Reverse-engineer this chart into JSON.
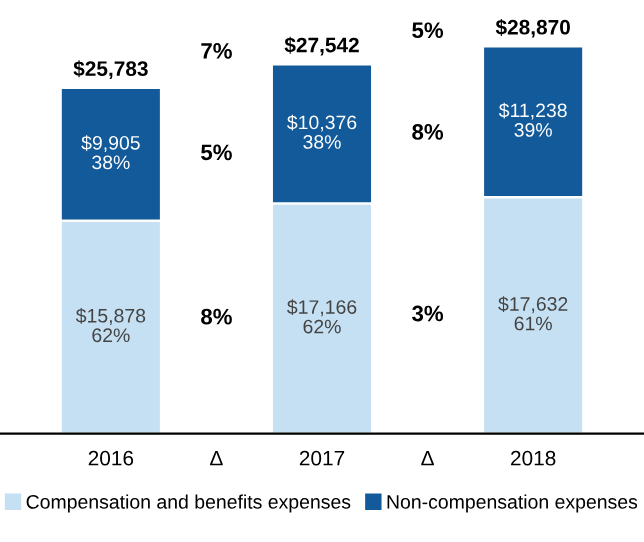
{
  "chart_data": {
    "type": "bar",
    "stacked": true,
    "categories": [
      "2016",
      "Δ",
      "2017",
      "Δ",
      "2018"
    ],
    "series": [
      {
        "name": "Compensation and benefits expenses",
        "color": "#c6e0f3",
        "values": [
          15878,
          null,
          17166,
          null,
          17632
        ],
        "value_labels": [
          "$15,878\n62%",
          null,
          "$17,166\n62%",
          null,
          "$17,632\n61%"
        ]
      },
      {
        "name": "Non-compensation expenses",
        "color": "#135a9a",
        "values": [
          9905,
          null,
          10376,
          null,
          11238
        ],
        "value_labels": [
          "$9,905\n38%",
          null,
          "$10,376\n38%",
          null,
          "$11,238\n39%"
        ]
      }
    ],
    "totals": [
      "$25,783",
      null,
      "$27,542",
      null,
      "$28,870"
    ],
    "annotations": [
      "7%",
      "5%",
      "8%",
      "5%",
      "8%",
      "3%"
    ],
    "legend": "bottom",
    "grid": false
  }
}
